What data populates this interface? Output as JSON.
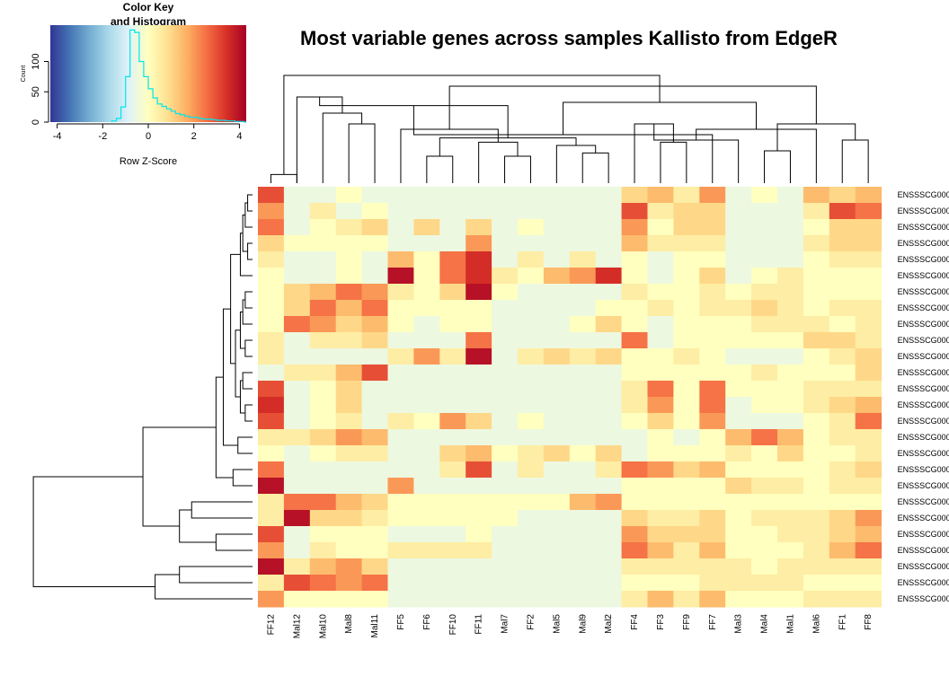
{
  "chart_data": {
    "type": "heatmap",
    "title": "Most variable genes across samples Kallisto from EdgeR",
    "columns": [
      "FF12",
      "Mal12",
      "Mal10",
      "Mal8",
      "Mal11",
      "FF5",
      "FF6",
      "FF10",
      "FF11",
      "Mal7",
      "FF2",
      "Mal5",
      "Mal9",
      "Mal2",
      "FF4",
      "FF3",
      "FF9",
      "FF7",
      "Mal3",
      "Mal4",
      "Mal1",
      "Mal6",
      "FF1",
      "FF8"
    ],
    "rows": [
      "ENSSSCG000",
      "ENSSSCG000",
      "ENSSSCG000",
      "ENSSSCG000",
      "ENSSSCG000",
      "ENSSSCG000",
      "ENSSSCG000",
      "ENSSSCG000",
      "ENSSSCG000",
      "ENSSSCG000",
      "ENSSSCG000",
      "ENSSSCG000",
      "ENSSSCG000",
      "ENSSSCG000",
      "ENSSSCG000",
      "ENSSSCG000",
      "ENSSSCG000",
      "ENSSSCG000",
      "ENSSSCG000",
      "ENSSSCG000",
      "ENSSSCG000",
      "ENSSSCG000",
      "ENSSSCG000",
      "ENSSSCG000",
      "ENSSSCG000",
      "ENSSSCG000"
    ],
    "z_scores": [
      [
        3,
        -0.5,
        -0.5,
        0,
        -0.5,
        -0.5,
        -0.5,
        -0.5,
        -0.5,
        -0.5,
        -0.5,
        -0.5,
        -0.5,
        -0.5,
        1,
        1.5,
        0.5,
        2,
        -0.5,
        0,
        -0.5,
        1.5,
        1,
        1.5
      ],
      [
        2,
        -0.5,
        0.5,
        -0.5,
        0,
        -0.5,
        -0.5,
        -0.5,
        -0.5,
        -0.5,
        -0.5,
        -0.5,
        -0.5,
        -0.5,
        3,
        0.5,
        1,
        1,
        -0.5,
        -0.5,
        -0.5,
        0.5,
        3,
        2.5
      ],
      [
        2.5,
        -0.5,
        0,
        0.5,
        1,
        -0.5,
        1,
        -0.5,
        1,
        -0.5,
        0,
        -0.5,
        -0.5,
        -0.5,
        2,
        0,
        1,
        1,
        -0.5,
        -0.5,
        -0.5,
        0,
        1,
        1
      ],
      [
        1,
        0,
        0,
        0,
        0,
        -0.5,
        -0.5,
        -0.5,
        2,
        -0.5,
        -0.5,
        -0.5,
        -0.5,
        -0.5,
        1.5,
        0.5,
        0.5,
        0.5,
        -0.5,
        -0.5,
        -0.5,
        0.5,
        1,
        1
      ],
      [
        0.5,
        -0.5,
        -0.5,
        0,
        -0.5,
        1.5,
        0,
        2.5,
        3.5,
        -0.5,
        0.5,
        -0.5,
        0.5,
        -0.5,
        0,
        -0.5,
        0,
        0,
        -0.5,
        -0.5,
        -0.5,
        0,
        0.5,
        0.5
      ],
      [
        0,
        -0.5,
        -0.5,
        0,
        -0.5,
        4,
        0,
        2.5,
        3.5,
        0.5,
        0,
        1.5,
        2,
        3.5,
        0,
        -0.5,
        0,
        1,
        -0.5,
        0,
        0.5,
        0,
        0,
        0
      ],
      [
        0,
        1,
        1.5,
        2.5,
        2,
        0.5,
        0,
        1,
        4,
        0,
        -0.5,
        -0.5,
        -0.5,
        -0.5,
        0.5,
        0,
        0,
        0.5,
        0,
        0.5,
        0.5,
        0,
        0,
        0
      ],
      [
        0,
        1,
        2.5,
        1.5,
        2.5,
        0,
        0,
        0,
        0,
        -0.5,
        -0.5,
        -0.5,
        -0.5,
        0,
        0,
        0.5,
        0,
        0.5,
        0.5,
        1,
        0.5,
        0,
        0.5,
        0.5
      ],
      [
        0,
        2.5,
        2,
        1,
        1.5,
        0,
        -0.5,
        0,
        0,
        -0.5,
        -0.5,
        -0.5,
        0,
        1,
        0,
        -0.5,
        0,
        0,
        0,
        0.5,
        0.5,
        0.5,
        0,
        0.5
      ],
      [
        0.5,
        -0.5,
        0.5,
        0.5,
        1,
        -0.5,
        -0.5,
        -0.5,
        2.5,
        -0.5,
        -0.5,
        -0.5,
        -0.5,
        -0.5,
        2.5,
        -0.5,
        0,
        0,
        0,
        0,
        0,
        1,
        1,
        0.5
      ],
      [
        0.5,
        -0.5,
        -0.5,
        -0.5,
        -0.5,
        0.5,
        2,
        0.5,
        4,
        -0.5,
        0.5,
        1,
        0.5,
        1,
        0,
        0,
        0.5,
        0,
        -0.5,
        -0.5,
        -0.5,
        0,
        0.5,
        1
      ],
      [
        -0.5,
        0.5,
        0.5,
        1.5,
        3,
        -0.5,
        -0.5,
        -0.5,
        -0.5,
        -0.5,
        -0.5,
        -0.5,
        -0.5,
        -0.5,
        0,
        0,
        0,
        0,
        0,
        0.5,
        0,
        0,
        0,
        1
      ],
      [
        3,
        -0.5,
        0,
        1,
        -0.5,
        -0.5,
        -0.5,
        -0.5,
        -0.5,
        -0.5,
        -0.5,
        -0.5,
        -0.5,
        -0.5,
        0.5,
        2.5,
        0,
        2.5,
        0,
        0,
        0,
        0.5,
        0.5,
        0.5
      ],
      [
        3.5,
        -0.5,
        0,
        1,
        -0.5,
        -0.5,
        -0.5,
        -0.5,
        -0.5,
        -0.5,
        -0.5,
        -0.5,
        -0.5,
        -0.5,
        0.5,
        2,
        0,
        2.5,
        -0.5,
        0,
        0,
        0.5,
        1,
        1.5
      ],
      [
        3,
        -0.5,
        0,
        0.5,
        -0.5,
        0.5,
        0,
        2,
        1,
        -0.5,
        0,
        -0.5,
        -0.5,
        -0.5,
        0,
        1,
        0,
        2,
        -0.5,
        -0.5,
        -0.5,
        0,
        0.5,
        2.5
      ],
      [
        0.5,
        0.5,
        1,
        2,
        1.5,
        -0.5,
        -0.5,
        -0.5,
        -0.5,
        -0.5,
        -0.5,
        -0.5,
        -0.5,
        -0.5,
        -0.5,
        0,
        -0.5,
        0,
        1.5,
        2.5,
        1.5,
        0,
        0.5,
        0.5
      ],
      [
        0,
        -0.5,
        0,
        0.5,
        0.5,
        -0.5,
        -0.5,
        1,
        1.5,
        0,
        0.5,
        1,
        0,
        1,
        -0.5,
        0,
        0,
        0,
        0.5,
        0,
        1,
        0,
        0,
        0.5
      ],
      [
        2.5,
        -0.5,
        -0.5,
        -0.5,
        -0.5,
        -0.5,
        -0.5,
        0.5,
        3,
        -0.5,
        0.5,
        -0.5,
        -0.5,
        0.5,
        2.5,
        2,
        1,
        1.5,
        0,
        0,
        0,
        0,
        0.5,
        1
      ],
      [
        4,
        -0.5,
        -0.5,
        -0.5,
        -0.5,
        2,
        -0.5,
        -0.5,
        -0.5,
        -0.5,
        -0.5,
        -0.5,
        -0.5,
        -0.5,
        0,
        0,
        0,
        0,
        1,
        0.5,
        0.5,
        0,
        0.5,
        0.5
      ],
      [
        0.5,
        2.5,
        2.5,
        1.5,
        1,
        0,
        0,
        0,
        0,
        0,
        0,
        0,
        1.5,
        2,
        0,
        0,
        0,
        0,
        0,
        0,
        0,
        0,
        0,
        0
      ],
      [
        0.5,
        4,
        1,
        1,
        0.5,
        0,
        0,
        0,
        0,
        0,
        -0.5,
        -0.5,
        -0.5,
        -0.5,
        1,
        0.5,
        0.5,
        1,
        0,
        0.5,
        0.5,
        0.5,
        1,
        2
      ],
      [
        3,
        -0.5,
        0,
        0,
        0,
        -0.5,
        -0.5,
        -0.5,
        0,
        -0.5,
        -0.5,
        -0.5,
        -0.5,
        -0.5,
        2,
        1,
        1,
        1,
        0,
        0,
        0.5,
        0.5,
        1,
        1.5
      ],
      [
        2,
        -0.5,
        0.5,
        0,
        0,
        0.5,
        0.5,
        0.5,
        0.5,
        -0.5,
        -0.5,
        -0.5,
        -0.5,
        -0.5,
        2.5,
        1.5,
        0.5,
        1.5,
        0,
        0,
        0,
        0.5,
        1.5,
        2.5
      ],
      [
        4,
        0.5,
        1.5,
        2,
        1,
        -0.5,
        -0.5,
        -0.5,
        -0.5,
        -0.5,
        -0.5,
        -0.5,
        -0.5,
        -0.5,
        0.5,
        0.5,
        0.5,
        0.5,
        0.5,
        0,
        0.5,
        0.5,
        0.5,
        0.5
      ],
      [
        0.5,
        3,
        2.5,
        2,
        2.5,
        -0.5,
        -0.5,
        -0.5,
        -0.5,
        -0.5,
        -0.5,
        -0.5,
        -0.5,
        -0.5,
        0,
        0,
        0,
        0.5,
        0.5,
        0.5,
        0.5,
        0,
        0,
        0
      ],
      [
        2,
        0,
        0,
        0,
        0,
        -0.5,
        -0.5,
        -0.5,
        -0.5,
        -0.5,
        -0.5,
        -0.5,
        -0.5,
        -0.5,
        0.5,
        1.5,
        0.5,
        1.5,
        0,
        0,
        0,
        0.5,
        0.5,
        0.5
      ]
    ],
    "color_key": {
      "title": "Color Key",
      "subtitle": "and Histogram",
      "xlabel": "Row Z-Score",
      "ylabel": "Count",
      "x_ticks": [
        "-4",
        "-2",
        "0",
        "2",
        "4"
      ],
      "x_tick_values": [
        -4,
        -2,
        0,
        2,
        4
      ],
      "y_ticks": [
        "0",
        "50",
        "100"
      ],
      "y_tick_values": [
        0,
        50,
        100
      ],
      "xlim": [
        -4.3,
        4.3
      ],
      "ylim": [
        0,
        160
      ],
      "colormap": [
        "#313695",
        "#4575b4",
        "#74add1",
        "#abd9e9",
        "#e0f3f8",
        "#ffffbf",
        "#fee090",
        "#fdae61",
        "#f46d43",
        "#d73027",
        "#a50026"
      ],
      "histogram_color": "#00e5ee",
      "histogram_bins": [
        [
          -1.6,
          -1.4,
          2
        ],
        [
          -1.4,
          -1.2,
          6
        ],
        [
          -1.2,
          -1.0,
          25
        ],
        [
          -1.0,
          -0.8,
          75
        ],
        [
          -0.8,
          -0.6,
          152
        ],
        [
          -0.6,
          -0.4,
          148
        ],
        [
          -0.4,
          -0.2,
          100
        ],
        [
          -0.2,
          0.0,
          75
        ],
        [
          0.0,
          0.2,
          55
        ],
        [
          0.2,
          0.4,
          40
        ],
        [
          0.4,
          0.6,
          30
        ],
        [
          0.6,
          0.8,
          26
        ],
        [
          0.8,
          1.0,
          22
        ],
        [
          1.0,
          1.2,
          18
        ],
        [
          1.2,
          1.4,
          14
        ],
        [
          1.4,
          1.6,
          12
        ],
        [
          1.6,
          1.8,
          10
        ],
        [
          1.8,
          2.0,
          8
        ],
        [
          2.0,
          2.2,
          8
        ],
        [
          2.2,
          2.4,
          6
        ],
        [
          2.4,
          2.6,
          5
        ],
        [
          2.6,
          2.8,
          5
        ],
        [
          2.8,
          3.0,
          4
        ],
        [
          3.0,
          3.2,
          3
        ],
        [
          3.2,
          3.4,
          3
        ],
        [
          3.4,
          3.6,
          2
        ],
        [
          3.6,
          3.8,
          2
        ],
        [
          3.8,
          4.0,
          1
        ],
        [
          4.0,
          4.2,
          1
        ]
      ]
    },
    "column_dendrogram": [
      [
        0,
        1,
        0.08
      ],
      [
        3,
        4,
        0.55
      ],
      [
        2,
        25,
        0.65
      ],
      [
        1,
        26,
        0.8
      ],
      [
        6,
        7,
        0.25
      ],
      [
        9,
        10,
        0.25
      ],
      [
        12,
        13,
        0.28
      ],
      [
        11,
        30,
        0.35
      ],
      [
        8,
        29,
        0.38
      ],
      [
        28,
        31,
        0.42
      ],
      [
        5,
        32,
        0.5
      ],
      [
        27,
        33,
        0.72
      ],
      [
        15,
        16,
        0.38
      ],
      [
        17,
        35,
        0.45
      ],
      [
        14,
        36,
        0.55
      ],
      [
        19,
        20,
        0.3
      ],
      [
        18,
        38,
        0.4
      ],
      [
        22,
        23,
        0.4
      ],
      [
        21,
        40,
        0.5
      ],
      [
        39,
        41,
        0.55
      ],
      [
        37,
        42,
        0.75
      ],
      [
        34,
        43,
        0.9
      ],
      [
        24,
        44,
        1.0
      ]
    ],
    "row_dendrogram": [
      [
        0,
        1,
        0.02
      ],
      [
        2,
        26,
        0.03
      ],
      [
        3,
        4,
        0.02
      ],
      [
        27,
        28,
        0.04
      ],
      [
        5,
        29,
        0.05
      ],
      [
        6,
        7,
        0.03
      ],
      [
        8,
        31,
        0.04
      ],
      [
        9,
        10,
        0.03
      ],
      [
        32,
        33,
        0.05
      ],
      [
        11,
        12,
        0.04
      ],
      [
        13,
        14,
        0.03
      ],
      [
        35,
        36,
        0.05
      ],
      [
        34,
        37,
        0.07
      ],
      [
        30,
        38,
        0.09
      ],
      [
        15,
        16,
        0.06
      ],
      [
        39,
        40,
        0.12
      ],
      [
        17,
        18,
        0.08
      ],
      [
        41,
        42,
        0.15
      ],
      [
        19,
        20,
        0.25
      ],
      [
        21,
        22,
        0.15
      ],
      [
        44,
        45,
        0.3
      ],
      [
        43,
        46,
        0.45
      ],
      [
        23,
        24,
        0.3
      ],
      [
        25,
        48,
        0.4
      ],
      [
        47,
        49,
        0.9
      ]
    ]
  }
}
